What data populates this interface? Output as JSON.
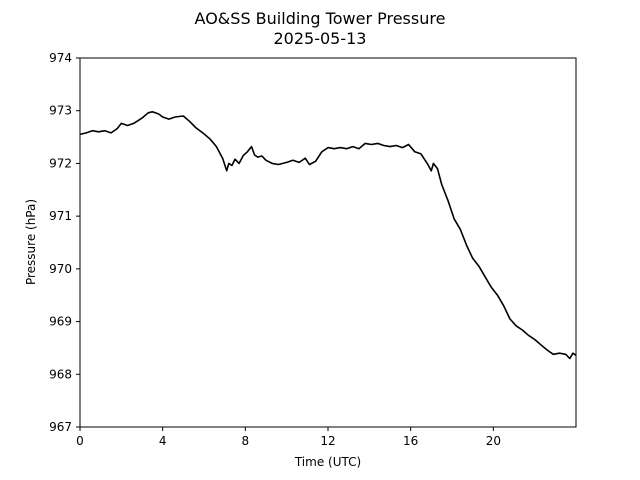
{
  "chart_data": {
    "type": "line",
    "title": "AO&SS Building Tower Pressure",
    "subtitle": "2025-05-13",
    "xlabel": "Time (UTC)",
    "ylabel": "Pressure (hPa)",
    "xlim": [
      0,
      24
    ],
    "ylim": [
      967,
      974
    ],
    "xticks": [
      0,
      4,
      8,
      12,
      16,
      20
    ],
    "yticks": [
      967,
      968,
      969,
      970,
      971,
      972,
      973,
      974
    ],
    "grid": false,
    "line_color": "#000000",
    "series": [
      {
        "x": [
          0.0,
          0.3,
          0.6,
          0.9,
          1.2,
          1.5,
          1.8,
          2.0,
          2.3,
          2.6,
          3.0,
          3.3,
          3.5,
          3.8,
          4.0,
          4.3,
          4.6,
          5.0,
          5.3,
          5.6,
          6.0,
          6.3,
          6.6,
          6.9,
          7.1,
          7.2,
          7.35,
          7.5,
          7.7,
          7.9,
          8.1,
          8.3,
          8.45,
          8.6,
          8.8,
          9.0,
          9.3,
          9.6,
          10.0,
          10.3,
          10.6,
          10.9,
          11.1,
          11.4,
          11.7,
          12.0,
          12.3,
          12.6,
          12.9,
          13.2,
          13.5,
          13.8,
          14.1,
          14.4,
          14.7,
          15.0,
          15.3,
          15.6,
          15.9,
          16.2,
          16.5,
          16.8,
          17.0,
          17.1,
          17.3,
          17.5,
          17.8,
          18.1,
          18.4,
          18.7,
          19.0,
          19.3,
          19.6,
          19.9,
          20.2,
          20.5,
          20.8,
          21.1,
          21.4,
          21.7,
          22.0,
          22.3,
          22.6,
          22.9,
          23.2,
          23.5,
          23.7,
          23.85,
          24.0
        ],
        "y": [
          972.55,
          972.58,
          972.62,
          972.6,
          972.62,
          972.58,
          972.66,
          972.76,
          972.72,
          972.76,
          972.86,
          972.96,
          972.98,
          972.94,
          972.88,
          972.84,
          972.88,
          972.9,
          972.8,
          972.68,
          972.56,
          972.46,
          972.32,
          972.1,
          971.86,
          972.0,
          971.96,
          972.08,
          972.0,
          972.15,
          972.22,
          972.32,
          972.16,
          972.12,
          972.14,
          972.06,
          972.0,
          971.98,
          972.02,
          972.06,
          972.02,
          972.1,
          971.98,
          972.04,
          972.22,
          972.3,
          972.28,
          972.3,
          972.28,
          972.32,
          972.28,
          972.38,
          972.36,
          972.38,
          972.34,
          972.32,
          972.34,
          972.3,
          972.36,
          972.22,
          972.18,
          972.0,
          971.86,
          972.0,
          971.9,
          971.6,
          971.3,
          970.95,
          970.75,
          970.45,
          970.2,
          970.05,
          969.85,
          969.65,
          969.5,
          969.3,
          969.05,
          968.92,
          968.84,
          968.74,
          968.66,
          968.56,
          968.46,
          968.38,
          968.4,
          968.38,
          968.3,
          968.4,
          968.36
        ]
      }
    ]
  }
}
